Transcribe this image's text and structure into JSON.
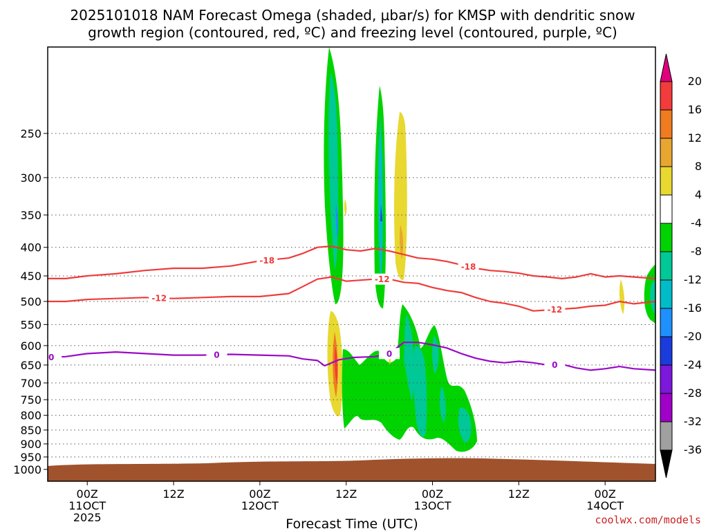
{
  "chart_data": {
    "type": "time-height cross section",
    "title_line1": "2025101018 NAM Forecast Omega (shaded, μbar/s) for KMSP with dendritic snow",
    "title_line2": "growth region (contoured, red, ºC) and freezing level (contoured, purple, ºC)",
    "xlabel": "Forecast Time (UTC)",
    "credit": "coolwx.com/models",
    "xlim_hours": [
      -5.5,
      79
    ],
    "x_ticks": [
      {
        "hour": 0,
        "label1": "00Z",
        "label2": "11OCT",
        "label3": "2025"
      },
      {
        "hour": 12,
        "label1": "12Z"
      },
      {
        "hour": 24,
        "label1": "00Z",
        "label2": "12OCT"
      },
      {
        "hour": 36,
        "label1": "12Z"
      },
      {
        "hour": 48,
        "label1": "00Z",
        "label2": "13OCT"
      },
      {
        "hour": 60,
        "label1": "12Z"
      },
      {
        "hour": 72,
        "label1": "00Z",
        "label2": "14OCT"
      }
    ],
    "ylim_hpa": [
      1050,
      175
    ],
    "y_ticks": [
      250,
      300,
      350,
      400,
      450,
      500,
      550,
      600,
      650,
      700,
      750,
      800,
      850,
      900,
      950,
      1000
    ],
    "colorbar": {
      "labels": [
        "20",
        "16",
        "12",
        "8",
        "4",
        "-4",
        "-8",
        "-12",
        "-16",
        "-20",
        "-24",
        "-28",
        "-32",
        "-36"
      ],
      "colors": [
        "#f23b3b",
        "#f07c20",
        "#e8a630",
        "#e8d830",
        "#ffffff",
        "#00d400",
        "#00c896",
        "#00bcc8",
        "#1e90ff",
        "#1a3cdc",
        "#7b18dc",
        "#a000c8",
        "#a0a0a0"
      ],
      "top_color": "#e0007e",
      "bottom_color": "#000000"
    },
    "series": [
      {
        "name": "-18 C isotherm",
        "color": "#ef3b3b",
        "label": "-18",
        "label_hours": [
          25,
          53
        ],
        "points": [
          [
            -5.5,
            455
          ],
          [
            -3,
            455
          ],
          [
            0,
            450
          ],
          [
            4,
            446
          ],
          [
            8,
            440
          ],
          [
            12,
            436
          ],
          [
            16,
            436
          ],
          [
            20,
            432
          ],
          [
            24,
            423
          ],
          [
            28,
            418
          ],
          [
            30,
            410
          ],
          [
            32,
            400
          ],
          [
            34,
            398
          ],
          [
            36,
            404
          ],
          [
            38,
            406
          ],
          [
            40,
            402
          ],
          [
            42,
            406
          ],
          [
            44,
            412
          ],
          [
            46,
            418
          ],
          [
            48,
            420
          ],
          [
            50,
            424
          ],
          [
            52,
            430
          ],
          [
            54,
            436
          ],
          [
            56,
            440
          ],
          [
            58,
            442
          ],
          [
            60,
            445
          ],
          [
            62,
            450
          ],
          [
            64,
            452
          ],
          [
            66,
            455
          ],
          [
            68,
            452
          ],
          [
            70,
            446
          ],
          [
            72,
            452
          ],
          [
            74,
            450
          ],
          [
            76,
            452
          ],
          [
            79,
            455
          ]
        ]
      },
      {
        "name": "-12 C isotherm",
        "color": "#ef3b3b",
        "label": "-12",
        "label_hours": [
          10,
          41,
          65
        ],
        "points": [
          [
            -5.5,
            500
          ],
          [
            -3,
            500
          ],
          [
            0,
            496
          ],
          [
            4,
            494
          ],
          [
            8,
            492
          ],
          [
            12,
            494
          ],
          [
            16,
            492
          ],
          [
            20,
            490
          ],
          [
            24,
            490
          ],
          [
            28,
            484
          ],
          [
            30,
            470
          ],
          [
            32,
            456
          ],
          [
            34,
            452
          ],
          [
            36,
            460
          ],
          [
            38,
            458
          ],
          [
            40,
            456
          ],
          [
            42,
            456
          ],
          [
            44,
            462
          ],
          [
            46,
            464
          ],
          [
            48,
            472
          ],
          [
            50,
            478
          ],
          [
            52,
            482
          ],
          [
            54,
            492
          ],
          [
            56,
            500
          ],
          [
            58,
            504
          ],
          [
            60,
            510
          ],
          [
            62,
            520
          ],
          [
            64,
            518
          ],
          [
            66,
            516
          ],
          [
            68,
            514
          ],
          [
            70,
            510
          ],
          [
            72,
            508
          ],
          [
            74,
            500
          ],
          [
            76,
            505
          ],
          [
            79,
            500
          ]
        ]
      },
      {
        "name": "0 C freezing level",
        "color": "#9b08c8",
        "label": "0",
        "label_hours": [
          -5,
          18,
          42,
          65
        ],
        "points": [
          [
            -5.5,
            630
          ],
          [
            -3,
            628
          ],
          [
            0,
            620
          ],
          [
            4,
            616
          ],
          [
            8,
            620
          ],
          [
            12,
            624
          ],
          [
            16,
            624
          ],
          [
            20,
            622
          ],
          [
            24,
            624
          ],
          [
            28,
            626
          ],
          [
            30,
            634
          ],
          [
            32,
            638
          ],
          [
            33,
            652
          ],
          [
            35,
            636
          ],
          [
            37,
            630
          ],
          [
            40,
            628
          ],
          [
            42,
            620
          ],
          [
            44,
            592
          ],
          [
            46,
            592
          ],
          [
            48,
            598
          ],
          [
            50,
            606
          ],
          [
            52,
            620
          ],
          [
            54,
            632
          ],
          [
            56,
            640
          ],
          [
            58,
            644
          ],
          [
            60,
            640
          ],
          [
            62,
            644
          ],
          [
            64,
            650
          ],
          [
            66,
            648
          ],
          [
            68,
            658
          ],
          [
            70,
            664
          ],
          [
            72,
            660
          ],
          [
            74,
            654
          ],
          [
            76,
            660
          ],
          [
            79,
            664
          ]
        ]
      }
    ]
  }
}
